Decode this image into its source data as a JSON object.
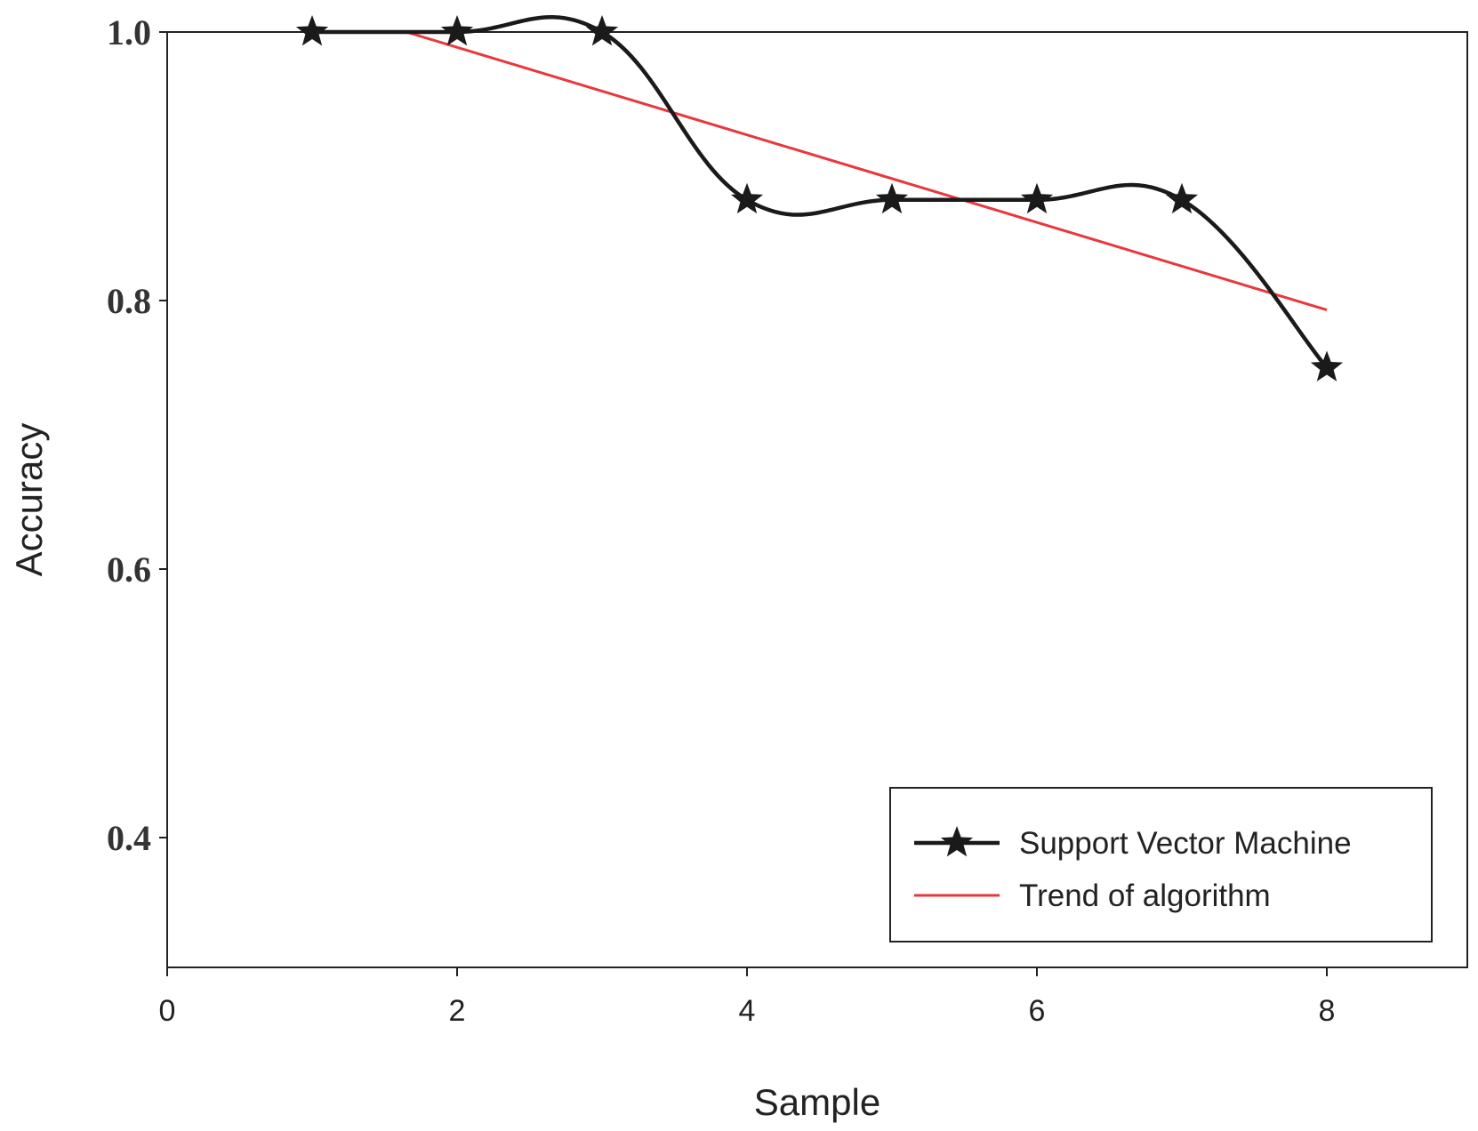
{
  "chart_data": {
    "type": "line",
    "title": "",
    "xlabel": "Sample",
    "ylabel": "Accuracy",
    "xlim": [
      0,
      9
    ],
    "ylim": [
      0.3,
      1.0
    ],
    "xticks": [
      0,
      2,
      4,
      6,
      8
    ],
    "xtick_labels": [
      "0",
      "2",
      "4",
      "6",
      "8"
    ],
    "yticks": [
      0.4,
      0.6,
      0.8,
      1.0
    ],
    "ytick_labels": [
      "0.4",
      "0.6",
      "0.8",
      "1.0"
    ],
    "grid": false,
    "legend_position": "bottom-right",
    "series": [
      {
        "name": "Support Vector Machine",
        "kind": "smooth-line-with-star-markers",
        "color": "#1a1a1a",
        "x": [
          1,
          2,
          3,
          4,
          5,
          6,
          7,
          8
        ],
        "values": [
          1.0,
          1.0,
          1.0,
          0.875,
          0.875,
          0.875,
          0.875,
          0.75
        ]
      },
      {
        "name": "Trend of algorithm",
        "kind": "linear-trend",
        "color": "#e8383d",
        "x": [
          1.65,
          8.0
        ],
        "values": [
          1.0,
          0.793
        ]
      }
    ]
  }
}
